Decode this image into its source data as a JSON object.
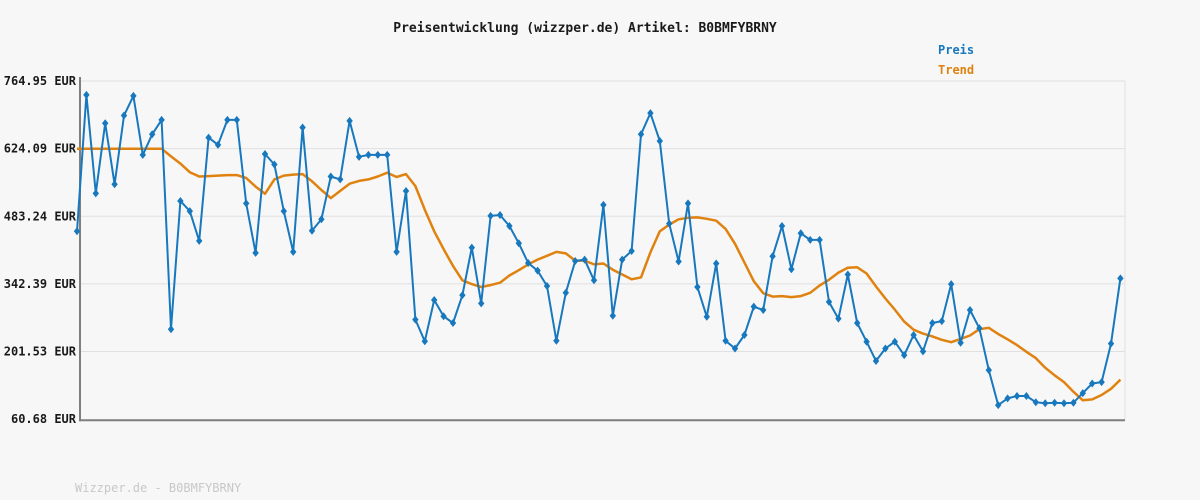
{
  "title": "Preisentwicklung (wizzper.de) Artikel: B0BMFYBRNY",
  "watermark": "Wizzper.de - B0BMFYBRNY",
  "legend": {
    "preis_label": "Preis",
    "trend_label": "Trend"
  },
  "colors": {
    "preis": "#1878be",
    "trend": "#e0820f",
    "background": "#f7f7f7",
    "grid": "#e0e0e0",
    "axis": "#7f7f7f",
    "label_text": "#1a1a1a",
    "watermark_text": "#c8c8c8"
  },
  "y_axis": {
    "unit": "EUR",
    "tick_labels": [
      "764.95 EUR",
      "624.09 EUR",
      "483.24 EUR",
      "342.39 EUR",
      "201.53 EUR",
      "60.68 EUR"
    ],
    "tick_values": [
      764.95,
      624.09,
      483.24,
      342.39,
      201.53,
      60.68
    ]
  },
  "x_axis": {
    "tick_labels": []
  },
  "chart_data": {
    "type": "line",
    "title": "Preisentwicklung (wizzper.de) Artikel: B0BMFYBRNY",
    "ylabel": "EUR",
    "xlabel": "",
    "ylim": [
      60.68,
      764.95
    ],
    "grid": "horizontal",
    "legend_position": "top-right",
    "x_description": "time axis, no tick labels shown; 112 samples left to right",
    "series": [
      {
        "name": "Preis",
        "color": "#1878be",
        "marker": "diamond",
        "values": [
          452,
          736,
          531,
          677,
          550,
          693,
          734,
          611,
          654,
          684,
          248,
          515,
          494,
          432,
          647,
          632,
          684,
          684,
          510,
          407,
          613,
          591,
          494,
          409,
          668,
          453,
          477,
          566,
          560,
          682,
          607,
          611,
          611,
          611,
          409,
          536,
          268,
          223,
          309,
          275,
          261,
          319,
          418,
          302,
          484,
          486,
          463,
          427,
          386,
          370,
          338,
          224,
          324,
          390,
          393,
          350,
          507,
          276,
          393,
          411,
          654,
          698,
          640,
          468,
          389,
          510,
          336,
          274,
          385,
          224,
          208,
          236,
          295,
          288,
          400,
          463,
          373,
          448,
          434,
          434,
          305,
          270,
          362,
          261,
          222,
          182,
          208,
          222,
          194,
          236,
          202,
          261,
          265,
          342,
          220,
          288,
          250,
          163,
          90,
          104,
          109,
          109,
          96,
          94,
          95,
          94,
          95,
          115,
          135,
          138,
          218,
          354
        ]
      },
      {
        "name": "Trend",
        "color": "#e0820f",
        "marker": "none",
        "values": [
          624,
          624,
          624,
          624,
          624,
          624,
          624,
          624,
          624,
          624,
          608,
          593,
          575,
          566,
          567,
          568,
          569,
          569,
          563,
          545,
          530,
          560,
          568,
          570,
          571,
          556,
          538,
          521,
          536,
          551,
          557,
          560,
          566,
          574,
          565,
          571,
          546,
          497,
          452,
          415,
          380,
          350,
          342,
          336,
          340,
          345,
          360,
          371,
          383,
          393,
          401,
          409,
          406,
          391,
          391,
          383,
          385,
          372,
          362,
          352,
          356,
          408,
          452,
          466,
          477,
          480,
          481,
          478,
          474,
          457,
          426,
          387,
          348,
          323,
          316,
          317,
          315,
          317,
          324,
          339,
          351,
          366,
          376,
          377,
          364,
          337,
          312,
          289,
          264,
          247,
          239,
          233,
          226,
          221,
          228,
          235,
          248,
          251,
          238,
          227,
          215,
          201,
          188,
          168,
          152,
          138,
          118,
          100,
          102,
          111,
          124,
          143
        ]
      }
    ]
  }
}
